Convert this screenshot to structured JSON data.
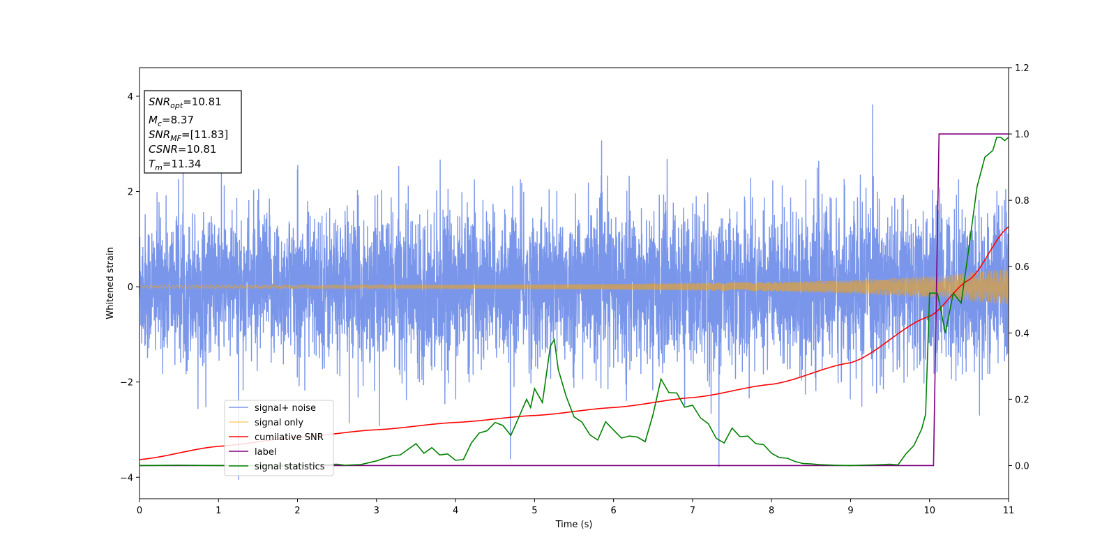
{
  "chart_data": {
    "type": "line",
    "xlabel": "Time (s)",
    "ylabel": "Whitened strain",
    "xlim": [
      0,
      11
    ],
    "ylim_left": [
      -4.45,
      4.6
    ],
    "ylim_right": [
      -0.1,
      1.2
    ],
    "x_ticks": [
      "0",
      "1",
      "2",
      "3",
      "4",
      "5",
      "6",
      "7",
      "8",
      "9",
      "10",
      "11"
    ],
    "y_ticks_left": [
      "−4",
      "−2",
      "0",
      "2",
      "4"
    ],
    "y_ticks_right": [
      "0.0",
      "0.2",
      "0.4",
      "0.6",
      "0.8",
      "1.0",
      "1.2"
    ],
    "grid": false,
    "legend_position": "lower-left",
    "info_box": {
      "snr_opt": {
        "sym": "SNR",
        "sub": "opt",
        "value": "=10.81"
      },
      "mc": {
        "sym": "M",
        "sub": "c",
        "value": "=8.37"
      },
      "snr_mf": {
        "sym": "SNR",
        "sub": "MF",
        "value": "=[11.83]"
      },
      "csnr": {
        "sym": "CSNR",
        "value": "=10.81"
      },
      "tm": {
        "sym": "T",
        "sub": "m",
        "value": "=11.34"
      }
    },
    "series": [
      {
        "name": "signal+ noise",
        "color": "#4169e1",
        "axis": "left",
        "noise": {
          "sigma_left": 0.75,
          "sigma_right": 0.85,
          "typical_min": -2.8,
          "typical_max": 2.9,
          "peak_max": 4.18,
          "peak_min": -4.05
        }
      },
      {
        "name": "signal only",
        "color": "#ffa500",
        "axis": "left",
        "amplitude": [
          [
            0,
            0.03
          ],
          [
            2,
            0.035
          ],
          [
            4,
            0.04
          ],
          [
            6,
            0.06
          ],
          [
            8,
            0.1
          ],
          [
            9,
            0.14
          ],
          [
            10,
            0.22
          ],
          [
            11,
            0.38
          ]
        ]
      },
      {
        "name": "cumilative SNR",
        "color": "#ff0000",
        "axis": "right",
        "x": [
          0,
          1,
          2,
          3,
          4,
          5,
          6,
          7,
          8,
          9,
          10,
          10.5,
          11
        ],
        "y": [
          0.018,
          0.058,
          0.085,
          0.108,
          0.13,
          0.151,
          0.175,
          0.205,
          0.245,
          0.31,
          0.45,
          0.56,
          0.72
        ]
      },
      {
        "name": "label",
        "color": "#800080",
        "axis": "right",
        "x": [
          0,
          10.05,
          10.12,
          11
        ],
        "y": [
          0,
          0,
          1,
          1
        ]
      },
      {
        "name": "signal statistics",
        "color": "#008000",
        "axis": "right",
        "x": [
          0,
          0.5,
          1,
          1.5,
          2,
          2.5,
          2.6,
          2.8,
          3.0,
          3.2,
          3.3,
          3.5,
          3.6,
          3.7,
          3.8,
          3.9,
          4.0,
          4.1,
          4.2,
          4.3,
          4.4,
          4.5,
          4.6,
          4.7,
          4.8,
          4.9,
          4.95,
          5.0,
          5.1,
          5.2,
          5.25,
          5.3,
          5.4,
          5.5,
          5.6,
          5.7,
          5.8,
          5.9,
          6.0,
          6.1,
          6.2,
          6.3,
          6.4,
          6.5,
          6.6,
          6.7,
          6.8,
          6.9,
          7.0,
          7.1,
          7.2,
          7.3,
          7.4,
          7.5,
          7.6,
          7.7,
          7.8,
          7.9,
          8.0,
          8.1,
          8.2,
          8.3,
          8.4,
          8.5,
          8.6,
          8.8,
          9.0,
          9.3,
          9.5,
          9.6,
          9.7,
          9.8,
          9.9,
          9.95,
          10.0,
          10.1,
          10.2,
          10.3,
          10.4,
          10.5,
          10.6,
          10.7,
          10.8,
          10.85,
          10.9,
          10.95,
          11.0
        ],
        "y": [
          0.0,
          0.001,
          0.0,
          0.0,
          0.0,
          0.004,
          0.001,
          0.003,
          0.014,
          0.03,
          0.032,
          0.066,
          0.037,
          0.054,
          0.032,
          0.035,
          0.016,
          0.018,
          0.068,
          0.098,
          0.105,
          0.13,
          0.121,
          0.091,
          0.145,
          0.2,
          0.175,
          0.232,
          0.19,
          0.36,
          0.38,
          0.29,
          0.209,
          0.147,
          0.131,
          0.093,
          0.077,
          0.132,
          0.107,
          0.083,
          0.089,
          0.086,
          0.072,
          0.154,
          0.261,
          0.22,
          0.219,
          0.176,
          0.182,
          0.144,
          0.126,
          0.082,
          0.068,
          0.113,
          0.087,
          0.089,
          0.066,
          0.063,
          0.037,
          0.024,
          0.022,
          0.012,
          0.006,
          0.005,
          0.003,
          0.001,
          0.0,
          0.002,
          0.004,
          0.002,
          0.035,
          0.06,
          0.11,
          0.155,
          0.52,
          0.52,
          0.4,
          0.52,
          0.49,
          0.66,
          0.84,
          0.93,
          0.95,
          0.99,
          0.99,
          0.98,
          0.99
        ]
      }
    ]
  }
}
